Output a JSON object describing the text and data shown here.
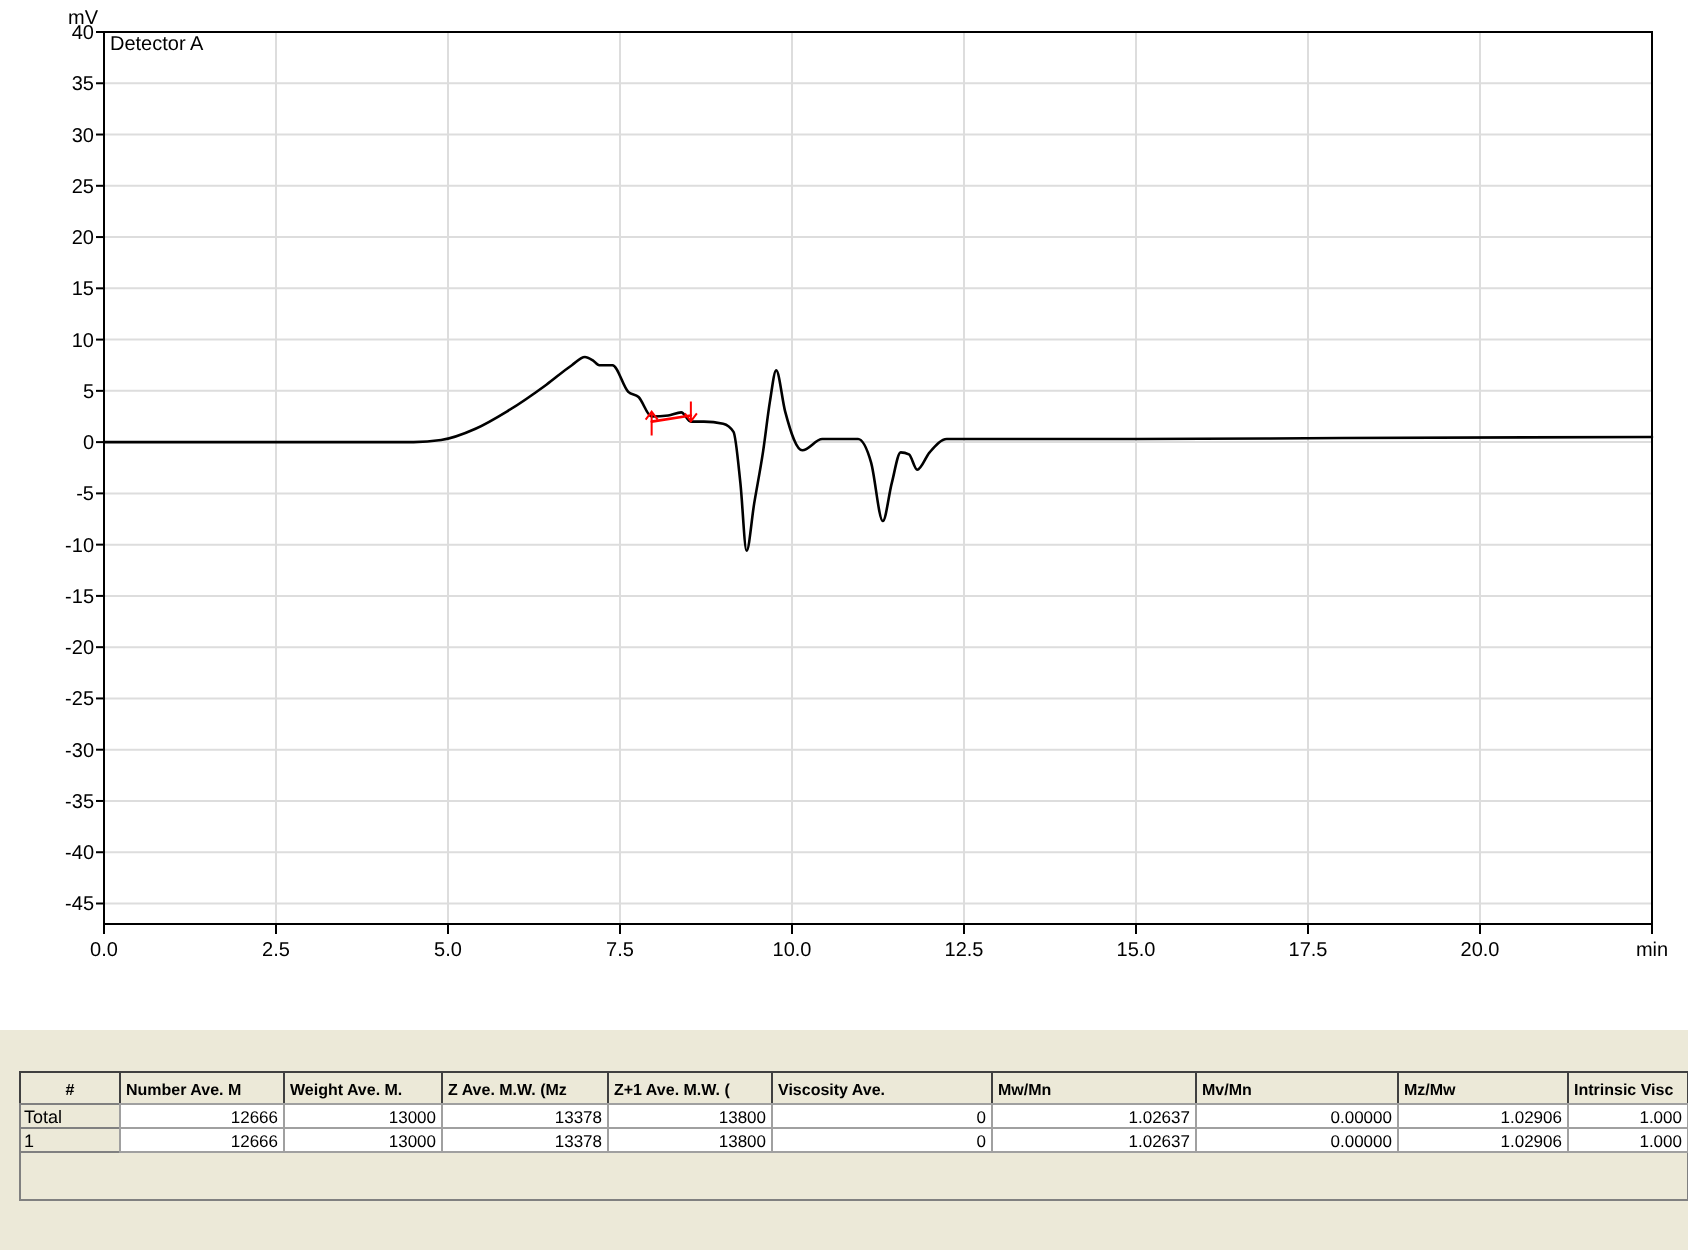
{
  "chart_data": [
    {
      "type": "line",
      "title": "Detector A",
      "ylabel": "mV",
      "xlim": [
        0,
        22.5
      ],
      "ylim": [
        -47,
        40
      ],
      "xticks": [
        {
          "value": 0,
          "label": "0.0"
        },
        {
          "value": 2.5,
          "label": "2.5"
        },
        {
          "value": 5,
          "label": "5.0"
        },
        {
          "value": 7.5,
          "label": "7.5"
        },
        {
          "value": 10,
          "label": "10.0"
        },
        {
          "value": 12.5,
          "label": "12.5"
        },
        {
          "value": 15,
          "label": "15.0"
        },
        {
          "value": 17.5,
          "label": "17.5"
        },
        {
          "value": 20,
          "label": "20.0"
        },
        {
          "value": 22.5,
          "label": "min"
        }
      ],
      "yticks": [
        40,
        35,
        30,
        25,
        20,
        15,
        10,
        5,
        0,
        -5,
        -10,
        -15,
        -20,
        -25,
        -30,
        -35,
        -40,
        -45
      ],
      "grid": true,
      "marker": "none",
      "series": [
        {
          "color": "#000000",
          "x": [
            0,
            2,
            4.5,
            4.9,
            5.4,
            5.86,
            6.43,
            6.8,
            6.99,
            7.1,
            7.2,
            7.39,
            7.62,
            7.77,
            7.96,
            8.2,
            8.39,
            8.53,
            8.72,
            9.0,
            9.15,
            9.25,
            9.34,
            9.45,
            9.58,
            9.68,
            9.77,
            9.9,
            10.15,
            10.44,
            10.96,
            11.15,
            11.32,
            11.45,
            11.58,
            11.7,
            11.82,
            12.0,
            12.25,
            15,
            18,
            22.5
          ],
          "values": [
            0,
            0,
            0,
            0.2,
            1.3,
            3.0,
            5.6,
            7.5,
            8.3,
            8.0,
            7.5,
            7.5,
            4.9,
            4.4,
            2.5,
            2.6,
            2.9,
            2.0,
            2.0,
            1.8,
            1.0,
            -4,
            -10.6,
            -6,
            -0.9,
            4,
            7.0,
            3,
            -0.8,
            0.3,
            0.3,
            -2,
            -7.7,
            -4,
            -1.0,
            -1.2,
            -2.7,
            -1,
            0.3,
            0.3,
            0.4,
            0.5
          ]
        },
        {
          "color": "#ff0000",
          "x": [
            7.96,
            8.53
          ],
          "values": [
            2.0,
            2.6
          ]
        }
      ]
    },
    {
      "type": "other",
      "categories": [
        "#",
        "Number Ave. M",
        "Weight Ave. M.",
        "Z Ave. M.W. (Mz",
        "Z+1 Ave. M.W. (",
        "Viscosity Ave.",
        "Mw/Mn",
        "Mv/Mn",
        "Mz/Mw",
        "Intrinsic Visc"
      ],
      "y_categories": [
        "Total",
        "1"
      ],
      "cell_labels": [
        [
          "12666",
          "13000",
          "13378",
          "13800",
          "0",
          "1.02637",
          "0.00000",
          "1.02906",
          "1.000"
        ],
        [
          "12666",
          "13000",
          "13378",
          "13800",
          "0",
          "1.02637",
          "0.00000",
          "1.02906",
          "1.000"
        ]
      ]
    }
  ]
}
